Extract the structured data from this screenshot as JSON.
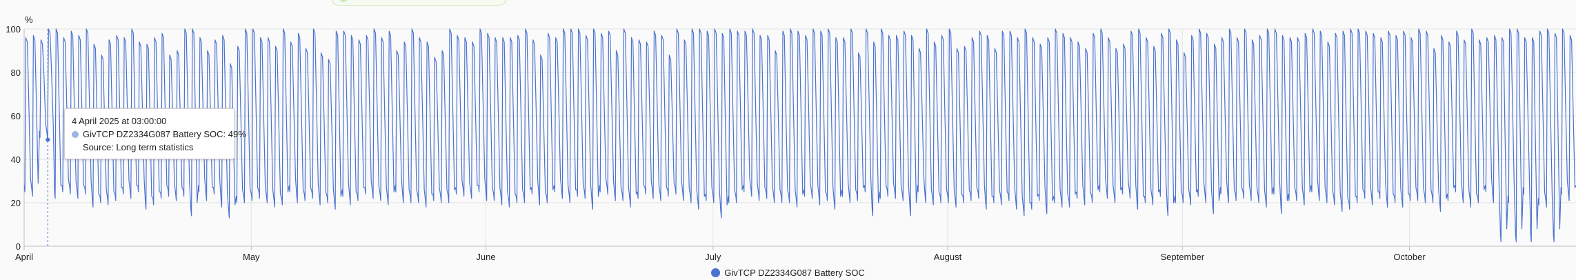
{
  "colors": {
    "series": "#4b72cf",
    "grid": "#e3e3e3",
    "axis": "#bdbdbd",
    "tooltip_dot": "#9fb4e3",
    "crosshair": "#4b72cf"
  },
  "chart_data": {
    "type": "line",
    "unit_label": "%",
    "ylim": [
      0,
      100
    ],
    "y_ticks": [
      "0",
      "20",
      "40",
      "60",
      "80",
      "100"
    ],
    "x_start": "2025-04-01",
    "x_end": "2025-10-23",
    "x_ticks": [
      {
        "date": "2025-04-01",
        "label": "April"
      },
      {
        "date": "2025-05-01",
        "label": "May"
      },
      {
        "date": "2025-06-01",
        "label": "June"
      },
      {
        "date": "2025-07-01",
        "label": "July"
      },
      {
        "date": "2025-08-01",
        "label": "August"
      },
      {
        "date": "2025-09-01",
        "label": "September"
      },
      {
        "date": "2025-10-01",
        "label": "October"
      }
    ],
    "grid": true,
    "legend_position": "bottom-center",
    "series": [
      {
        "name": "GivTCP DZ2334G087 Battery SOC",
        "x": [
          "2025-04-01",
          "2025-04-02",
          "2025-04-03",
          "2025-04-04",
          "2025-04-05",
          "2025-04-06",
          "2025-04-07",
          "2025-04-08",
          "2025-04-09",
          "2025-04-10",
          "2025-04-11",
          "2025-04-12",
          "2025-04-13",
          "2025-04-14",
          "2025-04-15",
          "2025-04-16",
          "2025-04-17",
          "2025-04-18",
          "2025-04-19",
          "2025-04-20",
          "2025-04-21",
          "2025-04-22",
          "2025-04-23",
          "2025-04-24",
          "2025-04-25",
          "2025-04-26",
          "2025-04-27",
          "2025-04-28",
          "2025-04-29",
          "2025-04-30",
          "2025-05-01",
          "2025-05-02",
          "2025-05-03",
          "2025-05-04",
          "2025-05-05",
          "2025-05-06",
          "2025-05-07",
          "2025-05-08",
          "2025-05-09",
          "2025-05-10",
          "2025-05-11",
          "2025-05-12",
          "2025-05-13",
          "2025-05-14",
          "2025-05-15",
          "2025-05-16",
          "2025-05-17",
          "2025-05-18",
          "2025-05-19",
          "2025-05-20",
          "2025-05-21",
          "2025-05-22",
          "2025-05-23",
          "2025-05-24",
          "2025-05-25",
          "2025-05-26",
          "2025-05-27",
          "2025-05-28",
          "2025-05-29",
          "2025-05-30",
          "2025-05-31",
          "2025-06-01",
          "2025-06-02",
          "2025-06-03",
          "2025-06-04",
          "2025-06-05",
          "2025-06-06",
          "2025-06-07",
          "2025-06-08",
          "2025-06-09",
          "2025-06-10",
          "2025-06-11",
          "2025-06-12",
          "2025-06-13",
          "2025-06-14",
          "2025-06-15",
          "2025-06-16",
          "2025-06-17",
          "2025-06-18",
          "2025-06-19",
          "2025-06-20",
          "2025-06-21",
          "2025-06-22",
          "2025-06-23",
          "2025-06-24",
          "2025-06-25",
          "2025-06-26",
          "2025-06-27",
          "2025-06-28",
          "2025-06-29",
          "2025-06-30",
          "2025-07-01",
          "2025-07-02",
          "2025-07-03",
          "2025-07-04",
          "2025-07-05",
          "2025-07-06",
          "2025-07-07",
          "2025-07-08",
          "2025-07-09",
          "2025-07-10",
          "2025-07-11",
          "2025-07-12",
          "2025-07-13",
          "2025-07-14",
          "2025-07-15",
          "2025-07-16",
          "2025-07-17",
          "2025-07-18",
          "2025-07-19",
          "2025-07-20",
          "2025-07-21",
          "2025-07-22",
          "2025-07-23",
          "2025-07-24",
          "2025-07-25",
          "2025-07-26",
          "2025-07-27",
          "2025-07-28",
          "2025-07-29",
          "2025-07-30",
          "2025-07-31",
          "2025-08-01",
          "2025-08-02",
          "2025-08-03",
          "2025-08-04",
          "2025-08-05",
          "2025-08-06",
          "2025-08-07",
          "2025-08-08",
          "2025-08-09",
          "2025-08-10",
          "2025-08-11",
          "2025-08-12",
          "2025-08-13",
          "2025-08-14",
          "2025-08-15",
          "2025-08-16",
          "2025-08-17",
          "2025-08-18",
          "2025-08-19",
          "2025-08-20",
          "2025-08-21",
          "2025-08-22",
          "2025-08-23",
          "2025-08-24",
          "2025-08-25",
          "2025-08-26",
          "2025-08-27",
          "2025-08-28",
          "2025-08-29",
          "2025-08-30",
          "2025-08-31",
          "2025-09-01",
          "2025-09-02",
          "2025-09-03",
          "2025-09-04",
          "2025-09-05",
          "2025-09-06",
          "2025-09-07",
          "2025-09-08",
          "2025-09-09",
          "2025-09-10",
          "2025-09-11",
          "2025-09-12",
          "2025-09-13",
          "2025-09-14",
          "2025-09-15",
          "2025-09-16",
          "2025-09-17",
          "2025-09-18",
          "2025-09-19",
          "2025-09-20",
          "2025-09-21",
          "2025-09-22",
          "2025-09-23",
          "2025-09-24",
          "2025-09-25",
          "2025-09-26",
          "2025-09-27",
          "2025-09-28",
          "2025-09-29",
          "2025-09-30",
          "2025-10-01",
          "2025-10-02",
          "2025-10-03",
          "2025-10-04",
          "2025-10-05",
          "2025-10-06",
          "2025-10-07",
          "2025-10-08",
          "2025-10-09",
          "2025-10-10",
          "2025-10-11",
          "2025-10-12",
          "2025-10-13",
          "2025-10-14",
          "2025-10-15",
          "2025-10-16",
          "2025-10-17",
          "2025-10-18",
          "2025-10-19",
          "2025-10-20",
          "2025-10-21",
          "2025-10-22",
          "2025-10-23"
        ],
        "daily_max": [
          96,
          97,
          95,
          100,
          100,
          96,
          99,
          97,
          100,
          93,
          88,
          95,
          97,
          96,
          100,
          94,
          93,
          96,
          98,
          88,
          90,
          100,
          100,
          96,
          90,
          95,
          97,
          84,
          92,
          100,
          100,
          96,
          96,
          92,
          100,
          94,
          98,
          91,
          100,
          89,
          86,
          99,
          99,
          97,
          95,
          97,
          100,
          96,
          99,
          90,
          94,
          100,
          96,
          94,
          87,
          90,
          100,
          97,
          96,
          94,
          100,
          98,
          96,
          96,
          96,
          97,
          100,
          95,
          88,
          98,
          96,
          100,
          100,
          100,
          97,
          100,
          98,
          99,
          90,
          100,
          96,
          95,
          94,
          99,
          97,
          88,
          100,
          95,
          100,
          100,
          99,
          100,
          98,
          100,
          99,
          99,
          100,
          97,
          97,
          90,
          99,
          100,
          99,
          97,
          100,
          99,
          100,
          96,
          96,
          100,
          89,
          100,
          94,
          100,
          97,
          97,
          99,
          97,
          91,
          100,
          94,
          97,
          100,
          91,
          92,
          96,
          99,
          97,
          91,
          99,
          99,
          96,
          100,
          96,
          93,
          96,
          100,
          98,
          96,
          94,
          91,
          98,
          100,
          96,
          91,
          93,
          99,
          100,
          96,
          92,
          98,
          100,
          95,
          89,
          97,
          100,
          98,
          93,
          96,
          100,
          96,
          100,
          95,
          97,
          100,
          100,
          97,
          96,
          96,
          98,
          100,
          99,
          94,
          98,
          99,
          100,
          100,
          99,
          98,
          96,
          99,
          97,
          99,
          96,
          100,
          99,
          91,
          97,
          94,
          99,
          95,
          100,
          95,
          96,
          97,
          96,
          100,
          100,
          96,
          96,
          99,
          100,
          98,
          100,
          97,
          97
        ],
        "daily_min": [
          25,
          23,
          50,
          49,
          22,
          25,
          24,
          22,
          24,
          18,
          20,
          19,
          21,
          24,
          22,
          25,
          17,
          19,
          22,
          23,
          21,
          23,
          14,
          25,
          21,
          24,
          18,
          13,
          20,
          20,
          21,
          22,
          20,
          18,
          19,
          25,
          20,
          21,
          22,
          19,
          20,
          17,
          23,
          19,
          21,
          24,
          22,
          21,
          19,
          25,
          20,
          20,
          20,
          18,
          21,
          20,
          20,
          24,
          23,
          22,
          25,
          21,
          21,
          19,
          18,
          20,
          20,
          24,
          19,
          20,
          25,
          22,
          20,
          23,
          22,
          17,
          25,
          24,
          21,
          21,
          18,
          22,
          24,
          22,
          21,
          23,
          24,
          21,
          20,
          17,
          21,
          20,
          13,
          20,
          20,
          25,
          23,
          21,
          22,
          20,
          20,
          20,
          18,
          23,
          22,
          19,
          21,
          17,
          23,
          20,
          21,
          25,
          14,
          22,
          23,
          22,
          21,
          14,
          25,
          20,
          19,
          20,
          20,
          18,
          20,
          21,
          22,
          17,
          20,
          19,
          21,
          17,
          14,
          17,
          21,
          15,
          20,
          18,
          18,
          22,
          19,
          20,
          25,
          22,
          20,
          24,
          22,
          17,
          20,
          19,
          23,
          14,
          20,
          20,
          19,
          23,
          20,
          15,
          24,
          20,
          21,
          22,
          21,
          20,
          18,
          24,
          15,
          21,
          21,
          19,
          25,
          21,
          20,
          19,
          16,
          17,
          20,
          22,
          19,
          22,
          18,
          20,
          18,
          21,
          21,
          20,
          20,
          16,
          21,
          25,
          20,
          18,
          20,
          25,
          20,
          2,
          20,
          2,
          24,
          2,
          19,
          18,
          2,
          24,
          21,
          25
        ]
      }
    ]
  },
  "tooltip": {
    "date": "4 April 2025 at 03:00:00",
    "series_line": "GivTCP DZ2334G087 Battery SOC: 49%",
    "source_line": "Source: Long term statistics",
    "x": "2025-04-04T03:00:00",
    "y": 49
  },
  "legend": {
    "label": "GivTCP DZ2334G087 Battery SOC"
  }
}
